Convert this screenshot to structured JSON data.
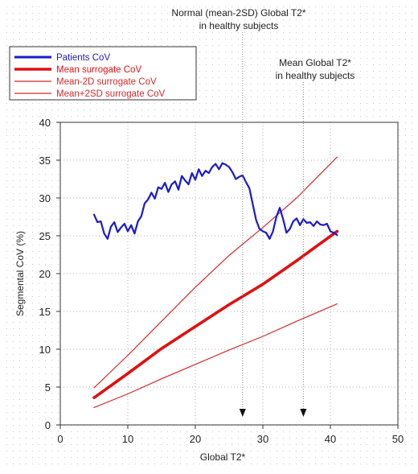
{
  "chart_data": {
    "type": "line",
    "xlabel": "Global T2*",
    "ylabel": "Segmental  CoV (%)",
    "xlim": [
      0,
      50
    ],
    "ylim": [
      0,
      40
    ],
    "xticks": [
      0,
      10,
      20,
      30,
      40,
      50
    ],
    "yticks": [
      0,
      5,
      10,
      15,
      20,
      25,
      30,
      35,
      40
    ],
    "grid": true,
    "legend_position": "top-left",
    "annotations": [
      {
        "lines": [
          "Normal (mean-2SD) Global T2*",
          "in healthy subjects"
        ],
        "x": 27,
        "arrow": true
      },
      {
        "lines": [
          "Mean Global T2*",
          "in healthy subjects"
        ],
        "x": 36,
        "arrow": true
      }
    ],
    "series": [
      {
        "name": "Patients CoV",
        "color": "#1a1acc",
        "x": [
          5,
          5.5,
          6,
          6.5,
          7,
          7.5,
          8,
          8.5,
          9,
          9.5,
          10,
          10.5,
          11,
          11.5,
          12,
          12.5,
          13,
          13.5,
          14,
          14.5,
          15,
          15.5,
          16,
          16.5,
          17,
          17.5,
          18,
          18.5,
          19,
          19.5,
          20,
          20.5,
          21,
          21.5,
          22,
          22.5,
          23,
          23.5,
          24,
          24.5,
          25,
          25.5,
          26,
          26.5,
          27,
          27.5,
          28,
          28.5,
          29,
          29.5,
          30,
          30.5,
          31,
          31.5,
          32,
          32.5,
          33,
          33.5,
          34,
          34.5,
          35,
          35.5,
          36,
          36.5,
          37,
          37.5,
          38,
          38.5,
          39,
          39.5,
          40,
          40.5,
          41
        ],
        "y": [
          27.8,
          26.8,
          26.9,
          25.3,
          24.6,
          26.2,
          26.8,
          25.5,
          26.1,
          26.6,
          25.6,
          26.4,
          25.3,
          26.9,
          27.6,
          29.3,
          29.8,
          30.7,
          29.9,
          31.4,
          31.2,
          32.0,
          30.8,
          31.8,
          32.2,
          31.1,
          32.9,
          32.3,
          31.8,
          33.3,
          32.4,
          33.8,
          32.9,
          33.6,
          33.3,
          34.1,
          34.5,
          33.8,
          34.6,
          34.4,
          34.1,
          33.4,
          32.5,
          32.8,
          33.0,
          32.1,
          31.3,
          29.2,
          27.1,
          25.9,
          25.6,
          25.4,
          24.6,
          25.6,
          27.5,
          28.7,
          27.2,
          25.4,
          25.9,
          26.9,
          27.3,
          26.4,
          27.2,
          26.7,
          26.8,
          26.3,
          26.9,
          26.5,
          26.4,
          26.6,
          25.6,
          25.4,
          25.1
        ]
      },
      {
        "name": "Mean surrogate CoV",
        "color": "#e01010",
        "x": [
          5,
          10,
          15,
          20,
          25,
          30,
          35,
          41
        ],
        "y": [
          3.6,
          6.8,
          10.1,
          13.0,
          15.9,
          18.6,
          21.7,
          25.6
        ]
      },
      {
        "name": "Mean-2D surrogate CoV",
        "color": "#d42a2a",
        "x": [
          5,
          10,
          15,
          20,
          25,
          30,
          35,
          41
        ],
        "y": [
          2.3,
          4.1,
          6.1,
          8.0,
          9.9,
          11.7,
          13.7,
          16.0
        ]
      },
      {
        "name": "Mean+2SD surrogate CoV",
        "color": "#d42a2a",
        "x": [
          5,
          10,
          15,
          20,
          25,
          30,
          35,
          41
        ],
        "y": [
          4.9,
          9.2,
          13.7,
          18.2,
          22.4,
          26.1,
          30.0,
          35.4
        ]
      }
    ]
  }
}
